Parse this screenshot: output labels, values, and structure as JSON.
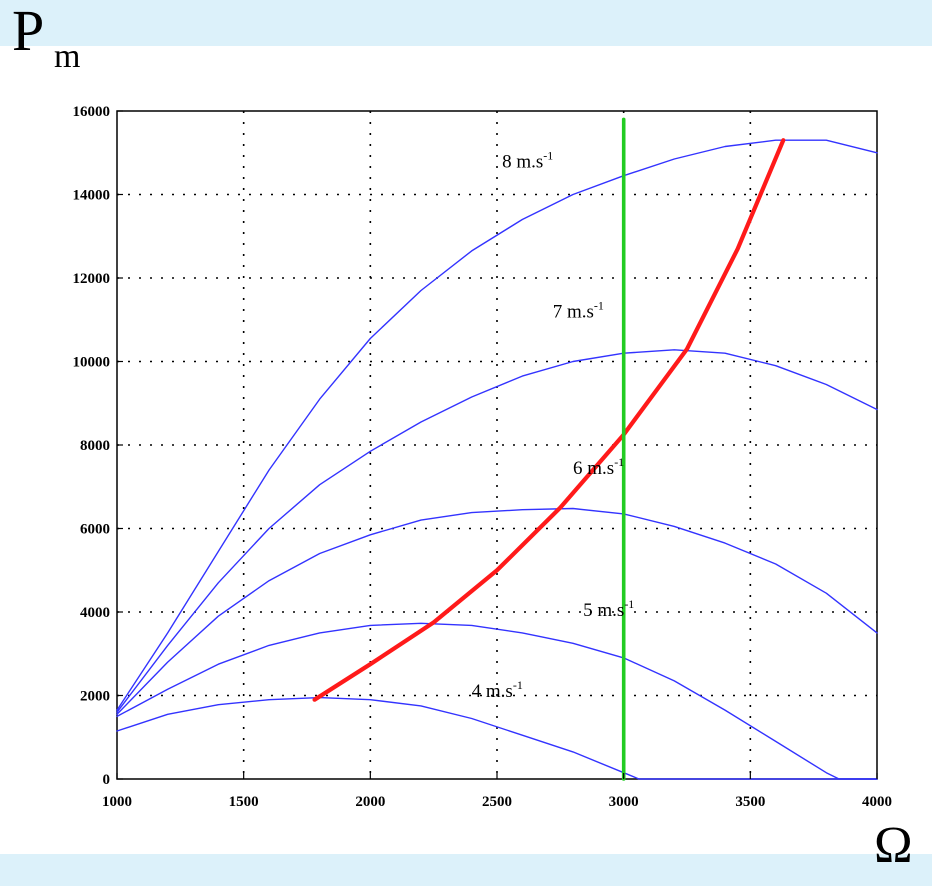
{
  "labels": {
    "y_main": "P",
    "y_sub": "m",
    "x_main": "Ω"
  },
  "chart_data": {
    "type": "line",
    "xlim": [
      1000,
      4000
    ],
    "ylim": [
      0,
      16000
    ],
    "xticks": [
      1000,
      1500,
      2000,
      2500,
      3000,
      3500,
      4000
    ],
    "yticks": [
      0,
      2000,
      4000,
      6000,
      8000,
      10000,
      12000,
      14000,
      16000
    ],
    "grid": true,
    "series": [
      {
        "name": "4 m.s-1",
        "color": "#3333ff",
        "points": [
          [
            1000,
            1150
          ],
          [
            1200,
            1550
          ],
          [
            1400,
            1780
          ],
          [
            1600,
            1900
          ],
          [
            1800,
            1950
          ],
          [
            2000,
            1900
          ],
          [
            2200,
            1750
          ],
          [
            2400,
            1450
          ],
          [
            2600,
            1050
          ],
          [
            2800,
            650
          ],
          [
            3000,
            150
          ],
          [
            3060,
            0
          ],
          [
            4000,
            0
          ]
        ]
      },
      {
        "name": "5 m.s-1",
        "color": "#3333ff",
        "points": [
          [
            1000,
            1500
          ],
          [
            1200,
            2150
          ],
          [
            1400,
            2750
          ],
          [
            1600,
            3200
          ],
          [
            1800,
            3500
          ],
          [
            2000,
            3680
          ],
          [
            2200,
            3730
          ],
          [
            2400,
            3680
          ],
          [
            2600,
            3500
          ],
          [
            2800,
            3250
          ],
          [
            3000,
            2900
          ],
          [
            3200,
            2350
          ],
          [
            3400,
            1650
          ],
          [
            3600,
            900
          ],
          [
            3800,
            150
          ],
          [
            3850,
            0
          ],
          [
            4000,
            0
          ]
        ]
      },
      {
        "name": "6 m.s-1",
        "color": "#3333ff",
        "points": [
          [
            1000,
            1550
          ],
          [
            1200,
            2800
          ],
          [
            1400,
            3900
          ],
          [
            1600,
            4750
          ],
          [
            1800,
            5400
          ],
          [
            2000,
            5850
          ],
          [
            2200,
            6200
          ],
          [
            2400,
            6380
          ],
          [
            2600,
            6450
          ],
          [
            2800,
            6480
          ],
          [
            3000,
            6350
          ],
          [
            3200,
            6050
          ],
          [
            3400,
            5650
          ],
          [
            3600,
            5150
          ],
          [
            3800,
            4450
          ],
          [
            4000,
            3500
          ]
        ]
      },
      {
        "name": "7 m.s-1",
        "color": "#3333ff",
        "points": [
          [
            1000,
            1600
          ],
          [
            1200,
            3200
          ],
          [
            1400,
            4700
          ],
          [
            1600,
            6000
          ],
          [
            1800,
            7050
          ],
          [
            2000,
            7850
          ],
          [
            2200,
            8550
          ],
          [
            2400,
            9150
          ],
          [
            2600,
            9650
          ],
          [
            2800,
            10000
          ],
          [
            3000,
            10200
          ],
          [
            3200,
            10280
          ],
          [
            3400,
            10200
          ],
          [
            3600,
            9900
          ],
          [
            3800,
            9450
          ],
          [
            4000,
            8850
          ]
        ]
      },
      {
        "name": "8 m.s-1",
        "color": "#3333ff",
        "points": [
          [
            1000,
            1650
          ],
          [
            1200,
            3500
          ],
          [
            1400,
            5450
          ],
          [
            1600,
            7400
          ],
          [
            1800,
            9100
          ],
          [
            2000,
            10550
          ],
          [
            2200,
            11700
          ],
          [
            2400,
            12650
          ],
          [
            2600,
            13400
          ],
          [
            2800,
            14000
          ],
          [
            3000,
            14450
          ],
          [
            3200,
            14850
          ],
          [
            3400,
            15150
          ],
          [
            3600,
            15300
          ],
          [
            3800,
            15300
          ],
          [
            4000,
            15000
          ]
        ]
      },
      {
        "name": "",
        "color": "#ff1a1a",
        "points": [
          [
            1780,
            1900
          ],
          [
            2000,
            2750
          ],
          [
            2250,
            3750
          ],
          [
            2500,
            5000
          ],
          [
            2750,
            6500
          ],
          [
            3000,
            8250
          ],
          [
            3250,
            10300
          ],
          [
            3450,
            12700
          ],
          [
            3630,
            15300
          ]
        ]
      },
      {
        "name": "",
        "color": "#22cc22",
        "points": [
          [
            3000,
            0
          ],
          [
            3000,
            15800
          ]
        ]
      }
    ],
    "annotations": [
      {
        "text": "8 m.s",
        "sup": "-1",
        "x": 2520,
        "y": 14650
      },
      {
        "text": "7 m.s",
        "sup": "-1",
        "x": 2720,
        "y": 11050
      },
      {
        "text": "6 m.s",
        "sup": "-1",
        "x": 2800,
        "y": 7300
      },
      {
        "text": "5 m.s",
        "sup": "-1",
        "x": 2840,
        "y": 3900
      },
      {
        "text": "4 m.s",
        "sup": "-1",
        "x": 2400,
        "y": 1960
      }
    ]
  }
}
